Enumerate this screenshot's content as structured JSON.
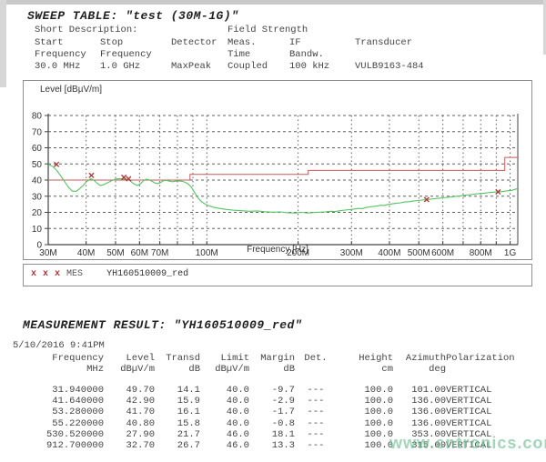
{
  "sweep_table": {
    "title": "SWEEP TABLE: \"test (30M-1G)\"",
    "short_description_label": "Short Description:",
    "short_description_value": "Field Strength",
    "columns": [
      {
        "line1": "Start",
        "line2": "Frequency",
        "value": "30.0 MHz"
      },
      {
        "line1": "Stop",
        "line2": "Frequency",
        "value": "1.0 GHz"
      },
      {
        "line1": "Detector",
        "line2": "",
        "value": "MaxPeak"
      },
      {
        "line1": "Meas.",
        "line2": "Time",
        "value": "Coupled"
      },
      {
        "line1": "IF",
        "line2": "Bandw.",
        "value": "100 kHz"
      },
      {
        "line1": "Transducer",
        "line2": "",
        "value": "VULB9163-484"
      }
    ]
  },
  "chart_data": {
    "type": "line",
    "title": "Level [dBµV/m]",
    "xlabel": "Frequency [Hz]",
    "x_scale": "log",
    "xlim_hz": [
      30000000,
      1060000000
    ],
    "ylim": [
      0,
      80
    ],
    "y_ticks": [
      0,
      10,
      20,
      30,
      40,
      50,
      60,
      70,
      80
    ],
    "x_gridlines_mhz": [
      30,
      40,
      50,
      60,
      70,
      80,
      90,
      100,
      200,
      300,
      400,
      500,
      600,
      700,
      800,
      900,
      1000
    ],
    "x_tick_labels": [
      {
        "mhz": 30,
        "label": "30M"
      },
      {
        "mhz": 40,
        "label": "40M"
      },
      {
        "mhz": 50,
        "label": "50M"
      },
      {
        "mhz": 60,
        "label": "60M"
      },
      {
        "mhz": 70,
        "label": "70M"
      },
      {
        "mhz": 100,
        "label": "100M"
      },
      {
        "mhz": 200,
        "label": "200M"
      },
      {
        "mhz": 300,
        "label": "300M"
      },
      {
        "mhz": 400,
        "label": "400M"
      },
      {
        "mhz": 500,
        "label": "500M"
      },
      {
        "mhz": 600,
        "label": "600M"
      },
      {
        "mhz": 800,
        "label": "800M"
      },
      {
        "mhz": 1000,
        "label": "1G"
      }
    ],
    "grid": true,
    "series": [
      {
        "name": "MES YH160510009_red",
        "color": "#55c463",
        "points_mhz_db": [
          [
            30,
            49.7
          ],
          [
            31,
            48.5
          ],
          [
            32,
            46.0
          ],
          [
            33,
            42.5
          ],
          [
            34,
            39.0
          ],
          [
            35,
            35.5
          ],
          [
            36,
            33.2
          ],
          [
            37,
            33.0
          ],
          [
            38,
            34.5
          ],
          [
            39,
            36.5
          ],
          [
            40,
            38.8
          ],
          [
            41,
            40.3
          ],
          [
            41.6,
            40.8
          ],
          [
            42.5,
            39.8
          ],
          [
            43.5,
            38.0
          ],
          [
            44.5,
            36.6
          ],
          [
            45.5,
            37.0
          ],
          [
            47,
            38.3
          ],
          [
            48.5,
            39.6
          ],
          [
            50,
            40.6
          ],
          [
            51.5,
            40.9
          ],
          [
            53.3,
            40.6
          ],
          [
            54.5,
            40.4
          ],
          [
            55.2,
            40.2
          ],
          [
            56,
            39.4
          ],
          [
            57.5,
            37.6
          ],
          [
            59,
            36.6
          ],
          [
            60.5,
            37.8
          ],
          [
            62,
            39.8
          ],
          [
            63,
            40.5
          ],
          [
            64.5,
            40.2
          ],
          [
            66,
            39.2
          ],
          [
            67.5,
            38.2
          ],
          [
            69,
            37.8
          ],
          [
            70.5,
            38.6
          ],
          [
            72,
            39.6
          ],
          [
            73.5,
            39.9
          ],
          [
            75,
            39.4
          ],
          [
            77,
            39.0
          ],
          [
            79,
            39.3
          ],
          [
            81,
            39.5
          ],
          [
            83,
            39.2
          ],
          [
            85,
            38.6
          ],
          [
            87,
            37.4
          ],
          [
            89,
            35.5
          ],
          [
            91,
            32.5
          ],
          [
            93,
            29.5
          ],
          [
            95.5,
            27.0
          ],
          [
            98,
            25.5
          ],
          [
            101,
            24.2
          ],
          [
            105,
            23.2
          ],
          [
            110,
            22.4
          ],
          [
            116,
            21.8
          ],
          [
            123,
            21.3
          ],
          [
            130,
            21.0
          ],
          [
            138,
            20.7
          ],
          [
            147,
            20.9
          ],
          [
            155,
            20.4
          ],
          [
            165,
            20.1
          ],
          [
            175,
            20.3
          ],
          [
            185,
            19.8
          ],
          [
            195,
            19.6
          ],
          [
            205,
            20.0
          ],
          [
            215,
            19.6
          ],
          [
            225,
            19.9
          ],
          [
            235,
            20.1
          ],
          [
            245,
            20.3
          ],
          [
            255,
            20.7
          ],
          [
            265,
            20.5
          ],
          [
            275,
            21.0
          ],
          [
            285,
            21.4
          ],
          [
            295,
            21.7
          ],
          [
            305,
            22.0
          ],
          [
            315,
            22.4
          ],
          [
            325,
            22.3
          ],
          [
            335,
            23.0
          ],
          [
            345,
            23.4
          ],
          [
            355,
            23.7
          ],
          [
            365,
            24.0
          ],
          [
            375,
            24.4
          ],
          [
            385,
            24.3
          ],
          [
            395,
            24.9
          ],
          [
            405,
            25.2
          ],
          [
            420,
            25.6
          ],
          [
            435,
            25.9
          ],
          [
            450,
            26.4
          ],
          [
            465,
            26.6
          ],
          [
            480,
            27.0
          ],
          [
            495,
            27.3
          ],
          [
            510,
            27.6
          ],
          [
            525,
            27.8
          ],
          [
            530.5,
            27.9
          ],
          [
            545,
            28.1
          ],
          [
            560,
            28.4
          ],
          [
            580,
            28.7
          ],
          [
            600,
            29.0
          ],
          [
            620,
            29.3
          ],
          [
            640,
            29.5
          ],
          [
            660,
            29.9
          ],
          [
            680,
            30.1
          ],
          [
            700,
            30.5
          ],
          [
            720,
            30.7
          ],
          [
            740,
            31.0
          ],
          [
            760,
            31.2
          ],
          [
            780,
            31.5
          ],
          [
            800,
            31.7
          ],
          [
            820,
            31.9
          ],
          [
            840,
            32.1
          ],
          [
            860,
            32.3
          ],
          [
            880,
            32.5
          ],
          [
            900,
            32.6
          ],
          [
            912.7,
            32.7
          ],
          [
            930,
            32.8
          ],
          [
            950,
            33.0
          ],
          [
            970,
            33.2
          ],
          [
            990,
            33.4
          ],
          [
            1010,
            33.6
          ],
          [
            1035,
            34.2
          ],
          [
            1055,
            34.6
          ]
        ]
      }
    ],
    "limit_line": {
      "name": "limit",
      "color": "#c75b5b",
      "segments_mhz_db": [
        [
          30,
          40
        ],
        [
          88,
          40
        ],
        [
          88,
          43.5
        ],
        [
          216,
          43.5
        ],
        [
          216,
          46
        ],
        [
          960,
          46
        ],
        [
          960,
          54
        ],
        [
          1060,
          54
        ]
      ]
    },
    "markers": {
      "symbol": "x",
      "color": "#b23333",
      "points_mhz_db": [
        [
          31.94,
          49.7
        ],
        [
          41.64,
          42.9
        ],
        [
          53.28,
          41.7
        ],
        [
          55.22,
          40.8
        ],
        [
          530.52,
          27.9
        ],
        [
          912.7,
          32.7
        ]
      ]
    }
  },
  "legend": {
    "marker_symbols": [
      "x",
      "x",
      "x"
    ],
    "trace_label": "MES",
    "trace_name": "YH160510009_red"
  },
  "measurement": {
    "title": "MEASUREMENT RESULT: \"YH160510009_red\"",
    "datetime": "5/10/2016  9:41PM",
    "table": {
      "headers": [
        {
          "name": "Frequency",
          "unit": "MHz"
        },
        {
          "name": "Level",
          "unit": "dBµV/m"
        },
        {
          "name": "Transd",
          "unit": "dB"
        },
        {
          "name": "Limit",
          "unit": "dBµV/m"
        },
        {
          "name": "Margin",
          "unit": "dB"
        },
        {
          "name": "Det.",
          "unit": ""
        },
        {
          "name": "Height",
          "unit": "cm"
        },
        {
          "name": "Azimuth",
          "unit": "deg"
        },
        {
          "name": "Polarization",
          "unit": ""
        }
      ],
      "rows": [
        [
          "31.940000",
          "49.70",
          "14.1",
          "40.0",
          "-9.7",
          "---",
          "100.0",
          "101.00",
          "VERTICAL"
        ],
        [
          "41.640000",
          "42.90",
          "15.9",
          "40.0",
          "-2.9",
          "---",
          "100.0",
          "136.00",
          "VERTICAL"
        ],
        [
          "53.280000",
          "41.70",
          "16.1",
          "40.0",
          "-1.7",
          "---",
          "100.0",
          "136.00",
          "VERTICAL"
        ],
        [
          "55.220000",
          "40.80",
          "15.8",
          "40.0",
          "-0.8",
          "---",
          "100.0",
          "136.00",
          "VERTICAL"
        ],
        [
          "530.520000",
          "27.90",
          "21.7",
          "46.0",
          "18.1",
          "---",
          "100.0",
          "353.00",
          "VERTICAL"
        ],
        [
          "912.700000",
          "32.70",
          "26.7",
          "46.0",
          "13.3",
          "---",
          "100.0",
          "315.00",
          "VERTICAL"
        ]
      ]
    }
  },
  "watermark": {
    "text": "www.cntronics.com",
    "color": "#6ec093"
  },
  "colors": {
    "trace": "#55c463",
    "limit": "#c75b5b",
    "marker": "#b23333",
    "grid": "#5f5f5f",
    "frame": "#444444",
    "box_border": "#8f8f8f"
  }
}
